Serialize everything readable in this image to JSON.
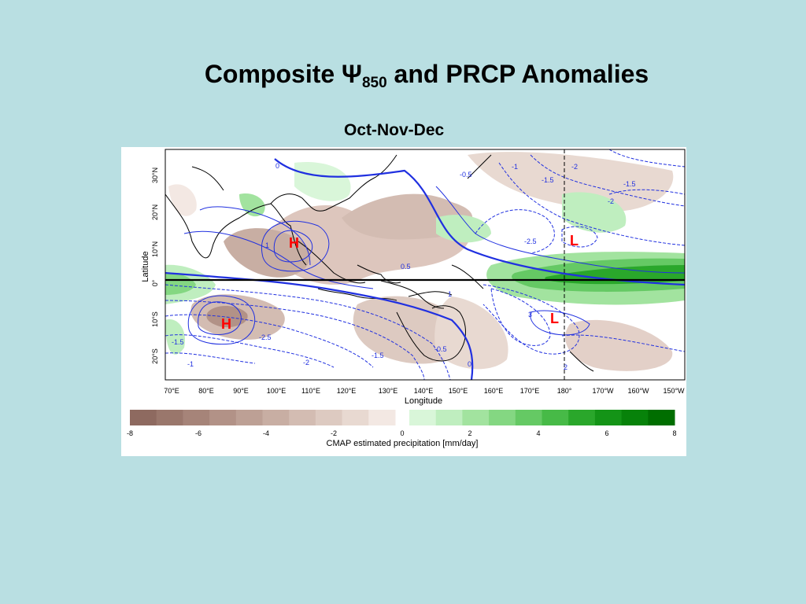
{
  "slide": {
    "title_main": "Composite Ψ",
    "title_sub": "850",
    "title_rest": " and PRCP Anomalies",
    "season": "Oct-Nov-Dec"
  },
  "map": {
    "xlabel": "Longitude",
    "ylabel": "Latitude",
    "lon_ticks": [
      "70°E",
      "80°E",
      "90°E",
      "100°E",
      "110°E",
      "120°E",
      "130°E",
      "140°E",
      "150°E",
      "160°E",
      "170°E",
      "180°",
      "170°W",
      "160°W",
      "150°W"
    ],
    "lat_ticks": [
      "30°N",
      "20°N",
      "10°N",
      "0°",
      "10°S",
      "20°S"
    ],
    "centers": [
      {
        "label": "H",
        "color": "#ff0000"
      },
      {
        "label": "H",
        "color": "#ff0000"
      },
      {
        "label": "L",
        "color": "#ff0000"
      },
      {
        "label": "L",
        "color": "#ff0000"
      }
    ],
    "contour_labels": [
      "0",
      "-0.5",
      "-1",
      "-1.5",
      "-2",
      "-1.5",
      "-2",
      "-2.5",
      "0.5",
      "1",
      "1",
      "3",
      "-0.5",
      "0",
      "-1.5",
      "-1",
      "-2.5",
      "-2",
      "-1.5",
      "2"
    ],
    "colors": {
      "contour": "#2030e0",
      "equator": "#000000",
      "date_line": "#000000"
    }
  },
  "colorbar": {
    "title": "CMAP estimated precipitation [mm/day]",
    "ticks": [
      "-8",
      "-6",
      "-4",
      "-2",
      "0",
      "2",
      "4",
      "6",
      "8"
    ],
    "units": "mm/day",
    "range": [
      -8,
      8
    ],
    "dry_colors": [
      "#8e6a60",
      "#9a776c",
      "#a68479",
      "#b29287",
      "#bda095",
      "#c8aea3",
      "#d3bcb2",
      "#ddcac1",
      "#e8d9d1",
      "#f3e8e3"
    ],
    "wet_colors": [
      "#d9f6d9",
      "#bfeebf",
      "#a2e39f",
      "#84d782",
      "#65c964",
      "#47ba47",
      "#2aa72b",
      "#149417",
      "#07820a",
      "#006e00"
    ]
  }
}
